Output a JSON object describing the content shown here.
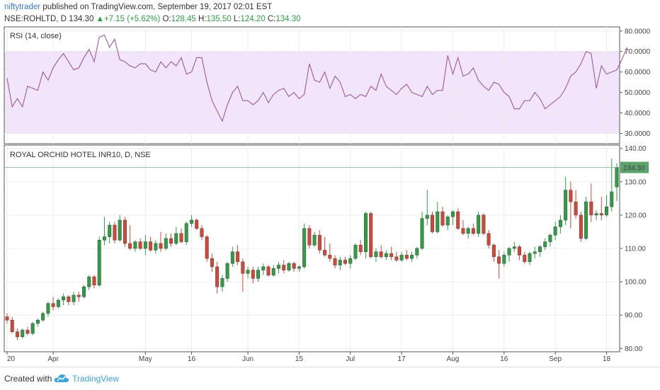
{
  "header": {
    "author": "niftytrader",
    "published_text": "published on TradingView.com, September 19, 2017 02:01 EST",
    "symbol": "NSE:ROHLTD, D",
    "last": "134.30",
    "change": "+7.15 (+5.62%)",
    "open_label": "O:",
    "open": "128.45",
    "high_label": "H:",
    "high": "135.50",
    "low_label": "L:",
    "low": "124.20",
    "close_label": "C:",
    "close": "134.30"
  },
  "footer": {
    "created_with": "Created with",
    "brand": "TradingView"
  },
  "colors": {
    "up": "#2e9e44",
    "down": "#d94535",
    "rsi_line": "#9b5b9b",
    "rsi_band": "#f2e4fb",
    "price_tag": "#5ba36c"
  },
  "chart_data": [
    {
      "type": "line",
      "title": "RSI (14, close)",
      "ylim": [
        25,
        82
      ],
      "y_ticks": [
        "30.0000",
        "40.0000",
        "50.0000",
        "60.0000",
        "70.0000",
        "80.0000"
      ],
      "band": [
        30,
        70
      ],
      "series": [
        {
          "values": [
            57,
            43,
            47,
            43,
            53,
            52,
            51,
            60,
            56,
            62,
            66,
            69,
            65,
            61,
            62,
            67,
            71,
            65,
            77,
            78,
            72,
            76,
            66,
            65,
            63,
            62,
            64,
            64,
            61,
            60,
            65,
            62,
            65,
            63,
            67,
            59,
            60,
            67,
            67,
            55,
            46,
            41,
            36,
            44,
            50,
            53,
            46,
            46,
            44,
            46,
            50,
            45,
            49,
            51,
            52,
            48,
            50,
            47,
            49,
            64,
            56,
            55,
            60,
            52,
            58,
            55,
            48,
            49,
            47,
            49,
            48,
            53,
            51,
            59,
            53,
            51,
            49,
            52,
            54,
            50,
            49,
            48,
            53,
            49,
            51,
            51,
            68,
            59,
            67,
            58,
            59,
            62,
            56,
            53,
            51,
            55,
            54,
            50,
            48,
            42,
            42,
            46,
            46,
            50,
            47,
            42,
            44,
            46,
            48,
            52,
            58,
            60,
            64,
            70,
            69,
            52,
            63,
            59,
            60,
            61,
            66,
            72
          ]
        }
      ]
    },
    {
      "type": "candlestick",
      "title": "ROYAL ORCHID HOTEL INR10, D, NSE",
      "ylim": [
        79,
        141
      ],
      "y_ticks": [
        "80.00",
        "90.00",
        "100.00",
        "110.00",
        "120.00",
        "130.00",
        "140.00"
      ],
      "last_price": "134.30",
      "x_tick_labels": [
        "20",
        "Apr",
        "May",
        "16",
        "Jun",
        "15",
        "Jul",
        "17",
        "Aug",
        "16",
        "Sep",
        "18"
      ],
      "x_tick_index": [
        0,
        9,
        27,
        36,
        47,
        57,
        67,
        77,
        87,
        97,
        107,
        117
      ],
      "ohlc": [
        [
          89.5,
          90.5,
          87.5,
          88.5
        ],
        [
          88.5,
          89.5,
          84.5,
          85.0
        ],
        [
          85.0,
          86.0,
          82.5,
          83.5
        ],
        [
          83.5,
          86.0,
          83.0,
          85.5
        ],
        [
          85.5,
          86.5,
          84.0,
          84.5
        ],
        [
          84.5,
          88.0,
          84.0,
          87.5
        ],
        [
          87.5,
          89.0,
          86.5,
          88.5
        ],
        [
          88.5,
          91.0,
          88.0,
          90.5
        ],
        [
          90.5,
          94.0,
          89.5,
          93.5
        ],
        [
          93.5,
          95.5,
          91.5,
          92.5
        ],
        [
          92.5,
          95.0,
          92.0,
          94.5
        ],
        [
          94.5,
          96.5,
          93.0,
          95.5
        ],
        [
          95.5,
          96.0,
          93.0,
          94.0
        ],
        [
          94.0,
          97.0,
          93.0,
          96.0
        ],
        [
          96.0,
          97.0,
          94.0,
          95.5
        ],
        [
          95.5,
          99.0,
          95.0,
          98.5
        ],
        [
          98.5,
          102.0,
          97.5,
          101.5
        ],
        [
          101.5,
          102.0,
          98.0,
          99.0
        ],
        [
          99.0,
          113.5,
          98.5,
          112.5
        ],
        [
          112.5,
          119.5,
          111.0,
          113.5
        ],
        [
          113.5,
          118.0,
          111.5,
          117.0
        ],
        [
          117.0,
          118.0,
          111.5,
          112.5
        ],
        [
          112.5,
          120.0,
          112.0,
          118.5
        ],
        [
          118.5,
          119.5,
          110.5,
          111.5
        ],
        [
          111.5,
          117.0,
          109.5,
          110.0
        ],
        [
          110.0,
          112.5,
          109.0,
          112.0
        ],
        [
          112.0,
          113.0,
          109.5,
          110.0
        ],
        [
          110.0,
          114.0,
          108.0,
          112.0
        ],
        [
          112.0,
          113.5,
          109.0,
          109.5
        ],
        [
          109.5,
          112.5,
          108.5,
          111.5
        ],
        [
          111.5,
          115.0,
          109.0,
          110.0
        ],
        [
          110.0,
          114.5,
          109.5,
          113.0
        ],
        [
          113.0,
          114.5,
          110.5,
          111.5
        ],
        [
          111.5,
          116.5,
          111.0,
          114.5
        ],
        [
          114.5,
          116.0,
          111.5,
          112.0
        ],
        [
          112.0,
          118.0,
          111.0,
          117.5
        ],
        [
          117.5,
          120.0,
          116.5,
          118.5
        ],
        [
          118.5,
          119.0,
          115.5,
          116.0
        ],
        [
          116.0,
          117.0,
          112.5,
          113.5
        ],
        [
          113.5,
          114.0,
          106.0,
          107.0
        ],
        [
          107.0,
          108.5,
          103.0,
          104.5
        ],
        [
          104.5,
          106.0,
          96.5,
          98.5
        ],
        [
          98.5,
          102.0,
          97.0,
          101.0
        ],
        [
          101.0,
          106.0,
          100.0,
          105.5
        ],
        [
          105.5,
          110.5,
          104.5,
          109.0
        ],
        [
          109.0,
          111.0,
          105.0,
          106.0
        ],
        [
          106.0,
          107.0,
          97.0,
          102.5
        ],
        [
          102.5,
          104.5,
          101.0,
          103.5
        ],
        [
          103.5,
          104.5,
          99.5,
          101.0
        ],
        [
          101.0,
          104.5,
          100.0,
          103.5
        ],
        [
          103.5,
          105.5,
          102.0,
          104.5
        ],
        [
          104.5,
          105.0,
          101.5,
          102.0
        ],
        [
          102.0,
          105.0,
          101.5,
          104.0
        ],
        [
          104.0,
          106.0,
          102.5,
          105.0
        ],
        [
          105.0,
          106.5,
          102.5,
          103.5
        ],
        [
          103.5,
          106.0,
          103.0,
          105.5
        ],
        [
          105.5,
          106.0,
          103.0,
          104.0
        ],
        [
          104.0,
          105.0,
          103.0,
          104.5
        ],
        [
          104.5,
          117.5,
          104.0,
          116.0
        ],
        [
          116.0,
          117.0,
          110.0,
          111.0
        ],
        [
          111.0,
          115.0,
          110.5,
          114.0
        ],
        [
          114.0,
          115.5,
          108.5,
          109.5
        ],
        [
          109.5,
          113.5,
          107.5,
          108.0
        ],
        [
          108.0,
          111.5,
          106.0,
          107.0
        ],
        [
          107.0,
          108.0,
          104.0,
          105.0
        ],
        [
          105.0,
          107.5,
          103.5,
          106.5
        ],
        [
          106.5,
          107.5,
          105.0,
          105.5
        ],
        [
          105.5,
          108.0,
          104.0,
          107.0
        ],
        [
          107.0,
          111.5,
          106.5,
          111.0
        ],
        [
          111.0,
          112.5,
          108.0,
          109.0
        ],
        [
          109.0,
          121.0,
          107.0,
          120.5
        ],
        [
          120.5,
          121.0,
          107.0,
          107.5
        ],
        [
          107.5,
          110.0,
          106.0,
          109.0
        ],
        [
          109.0,
          111.0,
          107.0,
          107.5
        ],
        [
          107.5,
          109.5,
          106.5,
          108.5
        ],
        [
          108.5,
          110.5,
          106.5,
          107.5
        ],
        [
          107.5,
          109.0,
          106.0,
          106.5
        ],
        [
          106.5,
          109.0,
          106.0,
          108.0
        ],
        [
          108.0,
          109.5,
          106.5,
          107.0
        ],
        [
          107.0,
          109.0,
          106.0,
          108.0
        ],
        [
          108.0,
          110.5,
          107.0,
          110.0
        ],
        [
          110.0,
          121.0,
          109.5,
          119.0
        ],
        [
          119.0,
          127.5,
          117.0,
          120.0
        ],
        [
          120.0,
          121.0,
          114.5,
          115.0
        ],
        [
          115.0,
          124.0,
          114.5,
          121.0
        ],
        [
          121.0,
          122.5,
          116.5,
          117.0
        ],
        [
          117.0,
          120.0,
          115.5,
          119.5
        ],
        [
          119.5,
          121.5,
          117.0,
          121.0
        ],
        [
          121.0,
          122.0,
          115.5,
          116.0
        ],
        [
          116.0,
          118.5,
          114.0,
          114.5
        ],
        [
          114.5,
          116.5,
          113.0,
          116.0
        ],
        [
          116.0,
          117.5,
          114.0,
          114.5
        ],
        [
          114.5,
          121.0,
          113.5,
          120.0
        ],
        [
          120.0,
          120.5,
          114.0,
          114.5
        ],
        [
          114.5,
          115.5,
          110.0,
          111.0
        ],
        [
          111.0,
          111.5,
          106.0,
          107.5
        ],
        [
          107.5,
          109.5,
          101.0,
          105.5
        ],
        [
          105.5,
          109.0,
          104.5,
          108.0
        ],
        [
          108.0,
          110.5,
          106.0,
          110.0
        ],
        [
          110.0,
          112.0,
          109.0,
          110.5
        ],
        [
          110.5,
          111.0,
          106.5,
          108.0
        ],
        [
          108.0,
          109.0,
          105.5,
          106.0
        ],
        [
          106.0,
          109.0,
          105.0,
          108.5
        ],
        [
          108.5,
          110.5,
          107.0,
          109.0
        ],
        [
          109.0,
          111.0,
          107.5,
          110.5
        ],
        [
          110.5,
          113.0,
          109.5,
          112.0
        ],
        [
          112.0,
          114.5,
          110.5,
          114.0
        ],
        [
          114.0,
          118.0,
          112.5,
          116.5
        ],
        [
          116.5,
          120.0,
          114.5,
          118.5
        ],
        [
          118.5,
          131.5,
          117.0,
          127.5
        ],
        [
          127.5,
          130.0,
          116.0,
          124.0
        ],
        [
          124.0,
          127.5,
          119.0,
          120.0
        ],
        [
          120.0,
          121.0,
          112.0,
          113.0
        ],
        [
          113.0,
          125.5,
          112.5,
          124.0
        ],
        [
          124.0,
          129.5,
          118.0,
          120.0
        ],
        [
          120.0,
          121.5,
          118.5,
          120.5
        ],
        [
          120.5,
          125.5,
          118.5,
          120.0
        ],
        [
          120.0,
          126.0,
          119.5,
          122.5
        ],
        [
          122.5,
          137.0,
          121.0,
          127.0
        ],
        [
          128.45,
          135.5,
          124.2,
          134.3
        ]
      ]
    }
  ]
}
